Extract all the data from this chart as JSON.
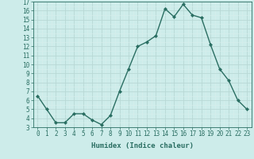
{
  "x": [
    0,
    1,
    2,
    3,
    4,
    5,
    6,
    7,
    8,
    9,
    10,
    11,
    12,
    13,
    14,
    15,
    16,
    17,
    18,
    19,
    20,
    21,
    22,
    23
  ],
  "y": [
    6.5,
    5.0,
    3.5,
    3.5,
    4.5,
    4.5,
    3.8,
    3.3,
    4.3,
    7.0,
    9.5,
    12.0,
    12.5,
    13.2,
    16.2,
    15.3,
    16.7,
    15.5,
    15.2,
    12.2,
    9.5,
    8.2,
    6.0,
    5.0
  ],
  "line_color": "#2a6e62",
  "marker": "D",
  "marker_size": 2,
  "bg_color": "#cdecea",
  "grid_major_color": "#b8d8d5",
  "grid_minor_color": "#d8eeec",
  "xlabel": "Humidex (Indice chaleur)",
  "xlim": [
    -0.5,
    23.5
  ],
  "ylim": [
    3,
    17
  ],
  "yticks": [
    3,
    4,
    5,
    6,
    7,
    8,
    9,
    10,
    11,
    12,
    13,
    14,
    15,
    16,
    17
  ],
  "xticks": [
    0,
    1,
    2,
    3,
    4,
    5,
    6,
    7,
    8,
    9,
    10,
    11,
    12,
    13,
    14,
    15,
    16,
    17,
    18,
    19,
    20,
    21,
    22,
    23
  ],
  "tick_label_fontsize": 5.5,
  "xlabel_fontsize": 6.5,
  "line_width": 1.0
}
